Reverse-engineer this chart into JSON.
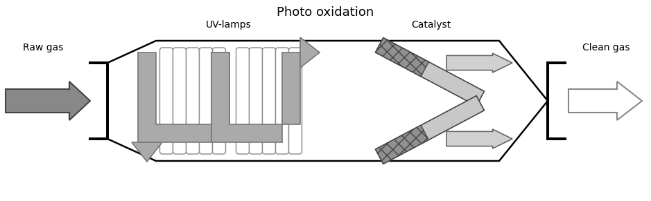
{
  "title": "Photo oxidation",
  "label_uv": "UV-lamps",
  "label_catalyst": "Catalyst",
  "label_raw": "Raw gas",
  "label_clean": "Clean gas",
  "bg_color": "#ffffff",
  "black": "#000000",
  "dark_gray": "#555555",
  "mid_gray": "#999999",
  "light_gray": "#cccccc",
  "lamp_fill": "#ffffff",
  "lamp_edge": "#888888",
  "arrow_fill": "#aaaaaa",
  "arrow_edge": "#777777",
  "catalyst_fill": "#c8c8c8",
  "catalyst_hatch_fill": "#909090",
  "catalyst_edge": "#444444",
  "right_arrow_fill": "#d0d0d0",
  "right_arrow_edge": "#666666",
  "raw_fill": "#888888",
  "raw_edge": "#444444",
  "clean_fill": "#ffffff",
  "clean_edge": "#888888"
}
